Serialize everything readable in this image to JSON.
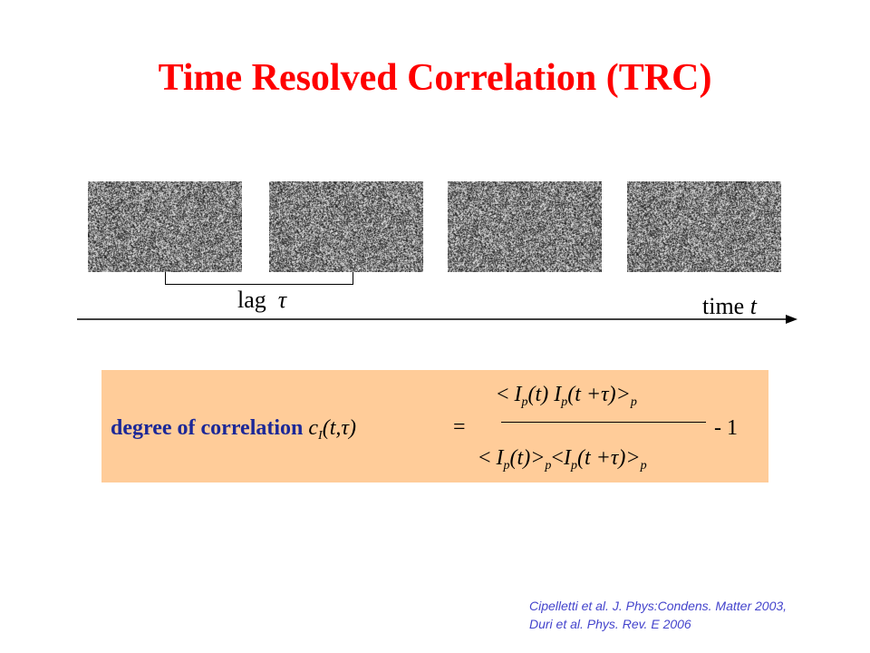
{
  "title": "Time Resolved Correlation (TRC)",
  "frames": [
    "speckle-image-1",
    "speckle-image-2",
    "speckle-image-3",
    "speckle-image-4"
  ],
  "lag_label": "lag",
  "lag_symbol": "τ",
  "time_label": "time",
  "time_symbol": "t",
  "formula": {
    "label": "degree of correlation",
    "c": "c",
    "c_sub": "I",
    "args": "(t,τ)",
    "equals": "=",
    "numerator": {
      "lt": "<",
      "I1": "I",
      "p1": "p",
      "t1": "(t)",
      "I2": "I",
      "p2": "p",
      "t2": "(t +τ)>",
      "p3": "p"
    },
    "denominator": {
      "lt": "<",
      "I1": "I",
      "p1": "p",
      "t1": "(t)>",
      "p2": "p",
      "lt2": "<",
      "I2": "I",
      "p3": "p",
      "t2": "(t +τ)>",
      "p4": "p"
    },
    "minus_one": "- 1"
  },
  "citation_lines": [
    "Cipelletti et al. J. Phys:Condens. Matter 2003,",
    "Duri et al. Phys. Rev. E 2006"
  ],
  "colors": {
    "title": "#ff0000",
    "label": "#1c2898",
    "box": "#ffcc99",
    "citation": "#4444cc"
  }
}
